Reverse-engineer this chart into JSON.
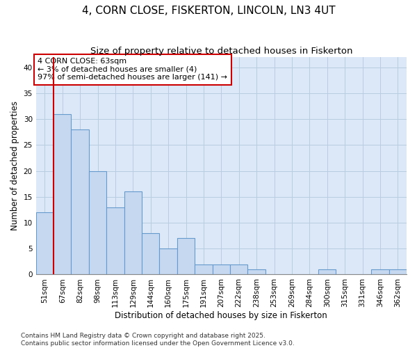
{
  "title": "4, CORN CLOSE, FISKERTON, LINCOLN, LN3 4UT",
  "subtitle": "Size of property relative to detached houses in Fiskerton",
  "xlabel": "Distribution of detached houses by size in Fiskerton",
  "ylabel": "Number of detached properties",
  "categories": [
    "51sqm",
    "67sqm",
    "82sqm",
    "98sqm",
    "113sqm",
    "129sqm",
    "144sqm",
    "160sqm",
    "175sqm",
    "191sqm",
    "207sqm",
    "222sqm",
    "238sqm",
    "253sqm",
    "269sqm",
    "284sqm",
    "300sqm",
    "315sqm",
    "331sqm",
    "346sqm",
    "362sqm"
  ],
  "values": [
    12,
    31,
    28,
    20,
    13,
    16,
    8,
    5,
    7,
    2,
    2,
    2,
    1,
    0,
    0,
    0,
    1,
    0,
    0,
    1,
    1
  ],
  "bar_color": "#c5d8f0",
  "bar_edge_color": "#6699cc",
  "marker_line_color": "#cc0000",
  "annotation_text": "4 CORN CLOSE: 63sqm\n← 3% of detached houses are smaller (4)\n97% of semi-detached houses are larger (141) →",
  "annotation_box_facecolor": "#ffffff",
  "annotation_box_edgecolor": "#cc0000",
  "ylim": [
    0,
    42
  ],
  "yticks": [
    0,
    5,
    10,
    15,
    20,
    25,
    30,
    35,
    40
  ],
  "plot_bg_color": "#dce8f8",
  "figure_bg_color": "#ffffff",
  "grid_color": "#b8cde0",
  "footer": "Contains HM Land Registry data © Crown copyright and database right 2025.\nContains public sector information licensed under the Open Government Licence v3.0.",
  "title_fontsize": 11,
  "subtitle_fontsize": 9.5,
  "axis_label_fontsize": 8.5,
  "tick_fontsize": 7.5,
  "annotation_fontsize": 8,
  "footer_fontsize": 6.5
}
